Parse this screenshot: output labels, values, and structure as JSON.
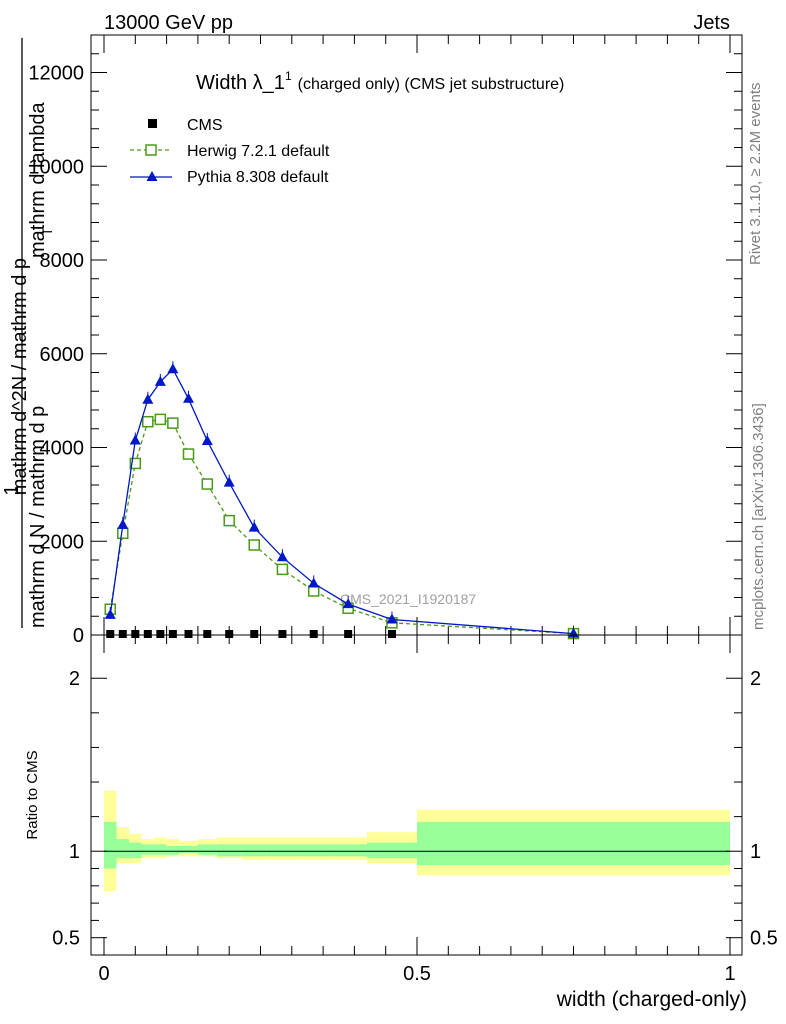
{
  "header": {
    "left_label": "13000 GeV pp",
    "right_label": "Jets"
  },
  "side_text": {
    "rivet": "Rivet 3.1.10, ≥ 2.2M events",
    "mcplots": "mcplots.cern.ch [arXiv:1306.3436]"
  },
  "chart_data": [
    {
      "type": "line",
      "title": "Width λ_1",
      "title_superscript": "1",
      "subtitle": "(charged only) (CMS jet substructure)",
      "ylabel": "1 / mathrm d N / mathrm d p_T mathrm d^2N / mathrm d p_T mathrm d lambda",
      "ylabel_parts": {
        "frac_top": "1",
        "frac_bottom": "mathrm d N / mathrm d p",
        "rest": "mathrm d^2N / mathrm d p",
        "tail": "mathrm d lambda",
        "sub": "T"
      },
      "xlim": [
        0,
        1
      ],
      "ylim": [
        0,
        12800
      ],
      "yticks": [
        0,
        2000,
        4000,
        6000,
        8000,
        10000,
        12000
      ],
      "ytick_labels": [
        "0",
        "2000",
        "4000",
        "6000",
        "8000",
        "10000",
        "12000"
      ],
      "legend_position": "top-left",
      "watermark": "CMS_2021_I1920187",
      "series": [
        {
          "name": "CMS",
          "color": "#000000",
          "marker": "square-filled",
          "x": [
            0.01,
            0.03,
            0.05,
            0.07,
            0.09,
            0.11,
            0.135,
            0.165,
            0.2,
            0.24,
            0.285,
            0.335,
            0.39,
            0.46,
            0.75
          ],
          "y": [
            0,
            0,
            0,
            0,
            0,
            0,
            0,
            0,
            0,
            0,
            0,
            0,
            0,
            0,
            0
          ]
        },
        {
          "name": "Herwig 7.2.1 default",
          "color": "#4a9a1a",
          "marker": "square-open",
          "line": "dashed",
          "x": [
            0.01,
            0.03,
            0.05,
            0.07,
            0.09,
            0.11,
            0.135,
            0.165,
            0.2,
            0.24,
            0.285,
            0.335,
            0.39,
            0.46,
            0.75
          ],
          "y": [
            550,
            2170,
            3660,
            4550,
            4600,
            4520,
            3860,
            3220,
            2440,
            1920,
            1400,
            940,
            570,
            260,
            30
          ]
        },
        {
          "name": "Pythia 8.308 default",
          "color": "#0018c8",
          "marker": "triangle-filled",
          "line": "solid",
          "x": [
            0.01,
            0.03,
            0.05,
            0.07,
            0.09,
            0.11,
            0.135,
            0.165,
            0.2,
            0.24,
            0.285,
            0.335,
            0.39,
            0.46,
            0.75
          ],
          "y": [
            430,
            2350,
            4150,
            5020,
            5400,
            5670,
            5040,
            4140,
            3250,
            2290,
            1660,
            1100,
            660,
            330,
            30
          ]
        }
      ]
    },
    {
      "type": "area",
      "ylabel": "Ratio to CMS",
      "xlabel": "width (charged-only)",
      "xlim": [
        0,
        1
      ],
      "ylim": [
        0.4,
        2.25
      ],
      "xticks": [
        0,
        0.5,
        1
      ],
      "xtick_labels": [
        "0",
        "0.5",
        "1"
      ],
      "yticks": [
        0.5,
        1,
        2
      ],
      "ytick_labels": [
        "0.5",
        "1",
        "2"
      ],
      "reference_line": 1,
      "band_edges": [
        0,
        0.02,
        0.04,
        0.06,
        0.08,
        0.1,
        0.12,
        0.15,
        0.18,
        0.22,
        0.26,
        0.31,
        0.36,
        0.42,
        0.5,
        1.0
      ],
      "series": [
        {
          "name": "",
          "color": "#ffff99",
          "upper": [
            1.35,
            1.14,
            1.1,
            1.07,
            1.08,
            1.07,
            1.06,
            1.07,
            1.08,
            1.08,
            1.08,
            1.08,
            1.08,
            1.11,
            1.24
          ],
          "lower": [
            0.77,
            0.93,
            0.93,
            0.96,
            0.96,
            0.97,
            0.97,
            0.97,
            0.96,
            0.95,
            0.95,
            0.95,
            0.95,
            0.93,
            0.86
          ]
        },
        {
          "name": "",
          "color": "#99ff99",
          "upper": [
            1.17,
            1.07,
            1.05,
            1.04,
            1.04,
            1.03,
            1.03,
            1.04,
            1.04,
            1.04,
            1.04,
            1.04,
            1.04,
            1.05,
            1.17
          ],
          "lower": [
            0.9,
            0.96,
            0.96,
            0.98,
            0.98,
            0.98,
            0.99,
            0.98,
            0.97,
            0.97,
            0.97,
            0.97,
            0.97,
            0.96,
            0.92
          ]
        }
      ]
    }
  ]
}
